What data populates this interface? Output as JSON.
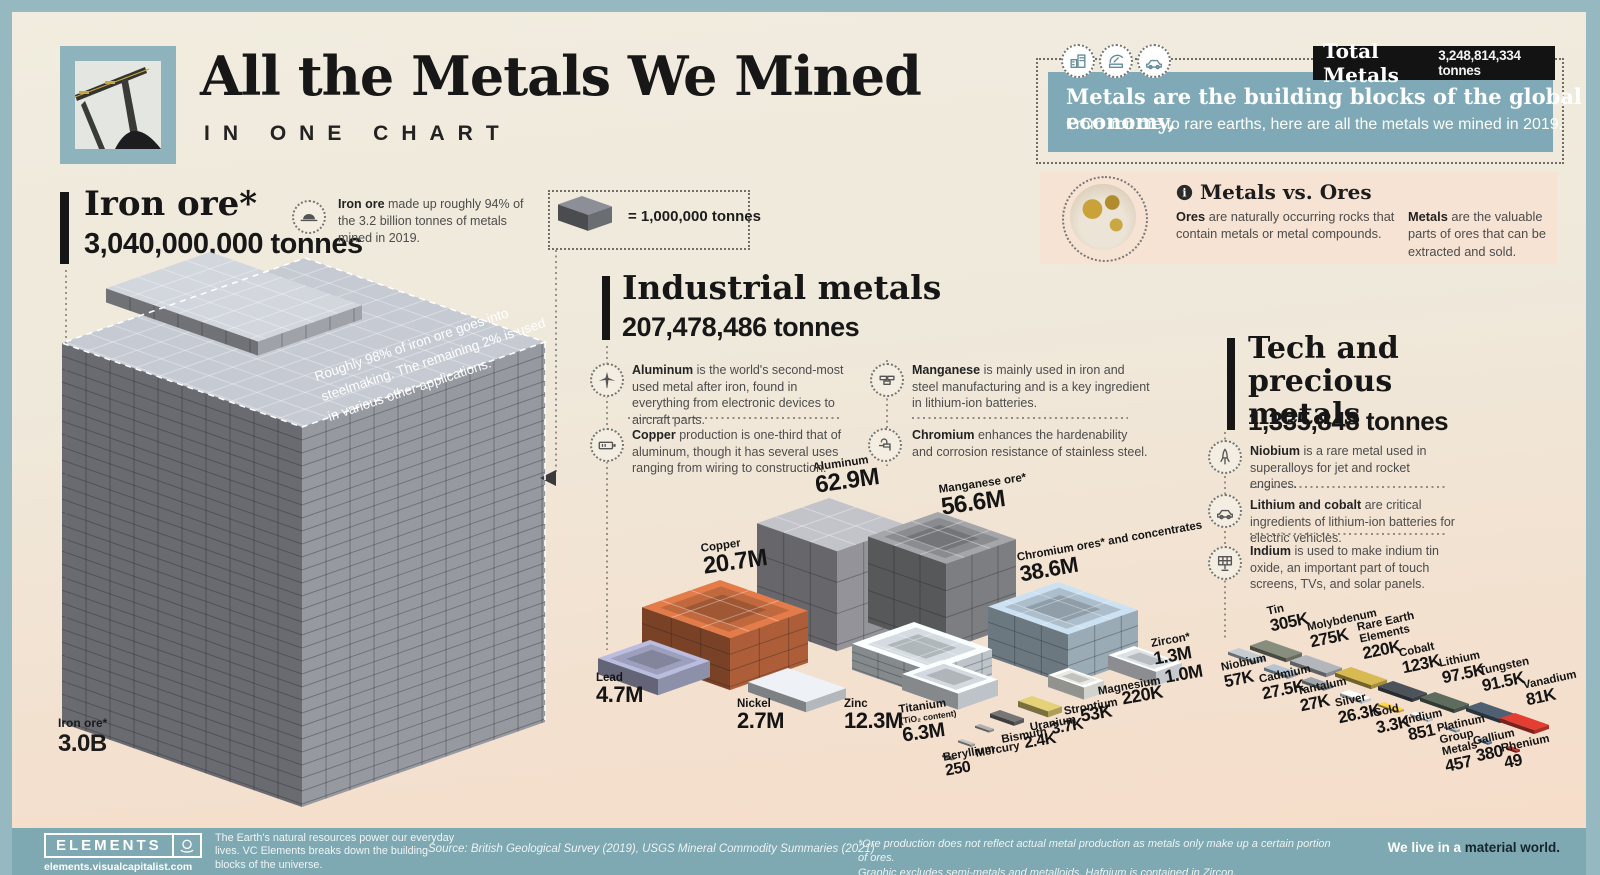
{
  "colors": {
    "accent_teal": "#7fa9b6",
    "frame_teal": "#96b8c1",
    "footer_teal": "#7ea8b2",
    "panel_pink": "#f6e3d3",
    "ink": "#161616"
  },
  "header": {
    "title": "All the Metals We Mined",
    "subtitle": "IN ONE CHART",
    "photo": "mining-conveyor-photo"
  },
  "header_right": {
    "icons": [
      "building-icon",
      "satellite-icon",
      "car-icon"
    ],
    "tagline_bold": "Metals are the building blocks of the global economy,",
    "tagline_rest": "From iron ore to rare earths, here are all the metals we mined in 2019.",
    "total_label": "Total Metals",
    "total_value": "3,248,814,334 tonnes"
  },
  "metals_vs_ores": {
    "title": "Metals vs. Ores",
    "ores_bold": "Ores",
    "ores_text": " are naturally occurring rocks that contain metals or metal compounds.",
    "metals_bold": "Metals",
    "metals_text": " are the valuable parts of ores that can be extracted and sold."
  },
  "iron_ore": {
    "heading": "Iron ore*",
    "tonnes": "3,040,000,000 tonnes",
    "note_icon": "hardhat-icon",
    "note_bold": "Iron ore",
    "note_rest": " made up roughly 94% of the 3.2 billion tonnes of metals mined in 2019.",
    "cube_note": "Roughly 98% of iron ore goes into steelmaking. The remaining 2% is used in various other applications."
  },
  "legend": {
    "label": "= 1,000,000 tonnes"
  },
  "industrial": {
    "heading": "Industrial metals",
    "tonnes": "207,478,486 tonnes",
    "bullets": [
      {
        "icon": "airplane-icon",
        "bold": "Aluminum",
        "text": " is the world's second-most used metal after iron, found in everything from electronic devices to aircraft parts."
      },
      {
        "icon": "battery-icon",
        "bold": "Copper",
        "text": " production is one-third that of aluminum, though it has several uses ranging from wiring to construction."
      },
      {
        "icon": "bricks-icon",
        "bold": "Manganese",
        "text": " is mainly used in iron and steel manufacturing and is a key ingredient in lithium-ion batteries."
      },
      {
        "icon": "faucet-icon",
        "bold": "Chromium",
        "text": " enhances the hardenability and corrosion resistance of stainless steel."
      }
    ]
  },
  "tech": {
    "heading": "Tech and precious metals",
    "tonnes": "1,335,848 tonnes",
    "bullets": [
      {
        "icon": "rocket-icon",
        "bold": "Niobium",
        "text": " is a rare metal used in superalloys for jet and rocket engines."
      },
      {
        "icon": "car-icon",
        "bold": "Lithium and cobalt",
        "text": " are critical ingredients of lithium-ion batteries for electric vehicles."
      },
      {
        "icon": "solar-panel-icon",
        "bold": "Indium",
        "text": " is used to make indium tin oxide, an important part of touch screens, TVs, and solar panels."
      }
    ]
  },
  "chart_data": {
    "type": "bar",
    "title": "All the Metals We Mined (2019)",
    "unit": "tonnes",
    "legend": "1 block = 1,000,000 tonnes",
    "block_unit_tonnes": 1000000,
    "groups": [
      {
        "name": "Iron ore",
        "total_text": "3,040,000,000 tonnes",
        "total_tonnes": 3040000000,
        "items": [
          {
            "label": "Iron ore*",
            "value_text": "3.0B",
            "tonnes": 3040000000
          }
        ]
      },
      {
        "name": "Industrial metals",
        "total_text": "207,478,486 tonnes",
        "total_tonnes": 207478486,
        "items": [
          {
            "label": "Aluminum",
            "value_text": "62.9M",
            "tonnes": 62900000
          },
          {
            "label": "Manganese ore*",
            "value_text": "56.6M",
            "tonnes": 56600000
          },
          {
            "label": "Chromium ores* and concentrates",
            "value_text": "38.6M",
            "tonnes": 38600000
          },
          {
            "label": "Copper",
            "value_text": "20.7M",
            "tonnes": 20700000
          },
          {
            "label": "Zinc",
            "value_text": "12.3M",
            "tonnes": 12300000
          },
          {
            "label": "Titanium",
            "sub": "(TiO₂ content)",
            "value_text": "6.3M",
            "tonnes": 6300000
          },
          {
            "label": "Lead",
            "value_text": "4.7M",
            "tonnes": 4700000
          },
          {
            "label": "Nickel",
            "value_text": "2.7M",
            "tonnes": 2700000
          },
          {
            "label": "Zircon*",
            "value_text": "1.3M",
            "tonnes": 1300000
          },
          {
            "label": "Magnesium",
            "value_text": "1.0M",
            "tonnes": 1000000
          },
          {
            "label": "Strontium",
            "value_text": "220K",
            "tonnes": 220000
          },
          {
            "label": "Uranium",
            "value_text": "53K",
            "tonnes": 53000
          },
          {
            "label": "Bismuth",
            "value_text": "3.7K",
            "tonnes": 3700
          },
          {
            "label": "Mercury",
            "value_text": "2.4K",
            "tonnes": 2400
          },
          {
            "label": "Beryllium",
            "value_text": "250",
            "tonnes": 250
          }
        ]
      },
      {
        "name": "Tech and precious metals",
        "total_text": "1,335,848 tonnes",
        "total_tonnes": 1335848,
        "items": [
          {
            "label": "Tin",
            "value_text": "305K",
            "tonnes": 305000
          },
          {
            "label": "Molybdenum",
            "value_text": "275K",
            "tonnes": 275000
          },
          {
            "label": "Rare Earth Elements",
            "value_text": "220K",
            "tonnes": 220000
          },
          {
            "label": "Cobalt",
            "value_text": "123K",
            "tonnes": 123000
          },
          {
            "label": "Lithium",
            "value_text": "97.5K",
            "tonnes": 97500
          },
          {
            "label": "Tungsten",
            "value_text": "91.5K",
            "tonnes": 91500
          },
          {
            "label": "Vanadium",
            "value_text": "81K",
            "tonnes": 81000
          },
          {
            "label": "Niobium",
            "value_text": "57K",
            "tonnes": 57000
          },
          {
            "label": "Cadmium",
            "value_text": "27.5K",
            "tonnes": 27500
          },
          {
            "label": "Tantalum",
            "value_text": "27K",
            "tonnes": 27000
          },
          {
            "label": "Silver",
            "value_text": "26.3K",
            "tonnes": 26300
          },
          {
            "label": "Gold",
            "value_text": "3.3K",
            "tonnes": 3300
          },
          {
            "label": "Indium",
            "value_text": "851",
            "tonnes": 851
          },
          {
            "label": "Platinum Group Metals",
            "value_text": "457",
            "tonnes": 457
          },
          {
            "label": "Gallium",
            "value_text": "380",
            "tonnes": 380
          },
          {
            "label": "Rhenium",
            "value_text": "49",
            "tonnes": 49
          }
        ]
      }
    ]
  },
  "footer": {
    "logo": "ELEMENTS",
    "url": "elements.visualcapitalist.com",
    "blurb": "The Earth's natural resources power our everyday lives. VC Elements breaks down the building blocks of the universe.",
    "source": "Source: British Geological Survey (2019), USGS Mineral Commodity Summaries (2021)",
    "footnote_line1": "*Ore production does not reflect actual metal production as metals only make up a certain portion of ores.",
    "footnote_line2": "Graphic excludes semi-metals and metalloids. Hafnium is contained in Zircon.",
    "tagline_light": "We live in a ",
    "tagline_dark": "material world."
  }
}
